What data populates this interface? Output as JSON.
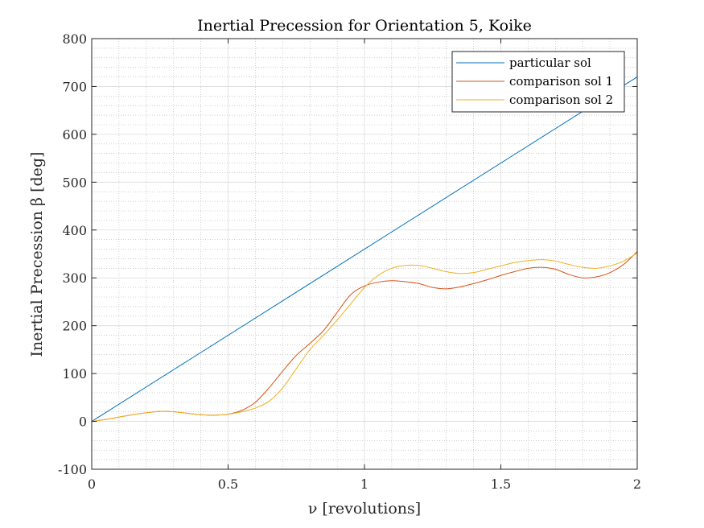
{
  "chart_data": {
    "type": "line",
    "title": "Inertial Precession for Orientation 5, Koike",
    "xlabel": "ν [revolutions]",
    "ylabel": "Inertial Precession β [deg]",
    "xlim": [
      0,
      2
    ],
    "ylim": [
      -100,
      800
    ],
    "xticks": [
      0,
      0.5,
      1,
      1.5,
      2
    ],
    "xtick_labels": [
      "0",
      "0.5",
      "1",
      "1.5",
      "2"
    ],
    "yticks": [
      -100,
      0,
      100,
      200,
      300,
      400,
      500,
      600,
      700,
      800
    ],
    "ytick_labels": [
      "-100",
      "0",
      "100",
      "200",
      "300",
      "400",
      "500",
      "600",
      "700",
      "800"
    ],
    "grid": "major and minor",
    "legend_position": "top-right",
    "series": [
      {
        "name": "particular sol",
        "color": "#0072BD",
        "x": [
          0,
          2
        ],
        "y": [
          0,
          720
        ]
      },
      {
        "name": "comparison sol 1",
        "color": "#D95319",
        "x": [
          0,
          0.05,
          0.1,
          0.15,
          0.2,
          0.25,
          0.3,
          0.35,
          0.4,
          0.45,
          0.5,
          0.55,
          0.6,
          0.65,
          0.7,
          0.75,
          0.8,
          0.85,
          0.9,
          0.95,
          1.0,
          1.05,
          1.1,
          1.15,
          1.2,
          1.25,
          1.3,
          1.35,
          1.4,
          1.45,
          1.5,
          1.55,
          1.6,
          1.65,
          1.7,
          1.75,
          1.8,
          1.85,
          1.9,
          1.95,
          2.0
        ],
        "y": [
          0,
          4,
          9,
          14,
          18,
          21,
          20,
          17,
          14,
          13,
          15,
          23,
          40,
          70,
          105,
          138,
          163,
          190,
          228,
          265,
          283,
          291,
          294,
          292,
          288,
          280,
          277,
          281,
          288,
          296,
          305,
          313,
          320,
          322,
          318,
          307,
          300,
          302,
          311,
          328,
          355
        ]
      },
      {
        "name": "comparison sol 2",
        "color": "#EDB120",
        "x": [
          0,
          0.05,
          0.1,
          0.15,
          0.2,
          0.25,
          0.3,
          0.35,
          0.4,
          0.45,
          0.5,
          0.55,
          0.6,
          0.65,
          0.7,
          0.75,
          0.8,
          0.85,
          0.9,
          0.95,
          1.0,
          1.05,
          1.1,
          1.15,
          1.2,
          1.25,
          1.3,
          1.35,
          1.4,
          1.45,
          1.5,
          1.55,
          1.6,
          1.65,
          1.7,
          1.75,
          1.8,
          1.85,
          1.9,
          1.95,
          2.0
        ],
        "y": [
          0,
          4,
          9,
          14,
          18,
          21,
          20,
          17,
          14,
          13,
          15,
          20,
          28,
          42,
          70,
          110,
          150,
          180,
          212,
          246,
          280,
          305,
          320,
          326,
          326,
          320,
          313,
          309,
          311,
          318,
          325,
          332,
          336,
          338,
          335,
          328,
          322,
          320,
          325,
          335,
          352
        ]
      }
    ]
  }
}
